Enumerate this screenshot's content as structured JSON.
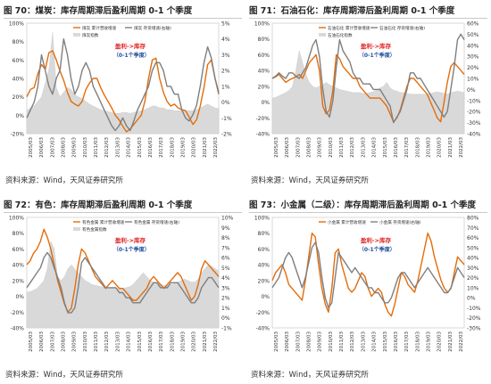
{
  "colors": {
    "orange": "#e46c0a",
    "gray": "#7f7f7f",
    "area": "#d9d9d9",
    "red": "#e02020",
    "blue": "#1f4e9e"
  },
  "panels": [
    {
      "title": "图 70：煤炭：库存周期滞后盈利周期 0-1 个季度",
      "source": "资料来源：Wind，天风证券研究所"
    },
    {
      "title": "图 71：石油石化：库存周期滞后盈利周期 0-1 个季度",
      "source": "资料来源：Wind，天风证券研究所"
    },
    {
      "title": "图 72：有色：库存周期滞后盈利周期 0-1 个季度",
      "source": "资料来源：Wind，天风证券研究所"
    },
    {
      "title": "图 73：小金属（二级）：库存周期滞后盈利周期 0-1 个季度",
      "source": "资料来源：Wind，天风证券研究所"
    }
  ],
  "chart_data": [
    {
      "type": "line",
      "x_ticks": [
        "2005/03",
        "2006/03",
        "2007/03",
        "2008/03",
        "2009/03",
        "2010/03",
        "2011/03",
        "2012/03",
        "2013/03",
        "2014/03",
        "2015/03",
        "2016/03",
        "2017/03",
        "2018/03",
        "2019/03",
        "2020/03",
        "2021/03",
        "2022/03"
      ],
      "left_ticks": [
        "100%",
        "80%",
        "60%",
        "40%",
        "20%",
        "0%",
        "-20%"
      ],
      "right_ticks": [
        "5%",
        "4%",
        "3%",
        "2%",
        "1%",
        "0%",
        "-1%",
        "-2%"
      ],
      "ylim_left": [
        -20,
        100
      ],
      "ylim_right": [
        -2,
        5
      ],
      "legend": [
        "煤炭 累计营收增速",
        "煤炭 存货增速(右轴)",
        "煤炭指数"
      ],
      "annotation": {
        "line1": "盈利->库存",
        "line2": "（0-1个季度）"
      },
      "series": [
        {
          "name": "煤炭 累计营收增速",
          "axis": "left",
          "values": [
            20,
            28,
            30,
            45,
            55,
            50,
            68,
            70,
            60,
            48,
            38,
            25,
            15,
            12,
            10,
            15,
            28,
            35,
            40,
            40,
            30,
            22,
            15,
            8,
            0,
            -5,
            -12,
            -18,
            -15,
            -10,
            -5,
            0,
            15,
            40,
            60,
            62,
            40,
            25,
            15,
            10,
            12,
            8,
            6,
            5,
            -2,
            -10,
            -5,
            10,
            30,
            55,
            60,
            40,
            25
          ]
        },
        {
          "name": "煤炭 存货增速(右轴)",
          "axis": "right",
          "values": [
            -1,
            -0.5,
            0,
            1,
            3,
            2,
            1,
            0.5,
            1.5,
            2,
            4,
            3,
            1.5,
            0.5,
            1,
            2,
            2.5,
            2,
            1,
            0.5,
            0,
            -0.5,
            -1,
            -1.5,
            -1.8,
            -1.5,
            -1,
            -1.5,
            -1.8,
            -1.2,
            -0.5,
            0,
            0.5,
            1,
            2,
            2.5,
            2.5,
            2,
            1,
            1,
            0.5,
            0.5,
            -0.5,
            -1,
            -1.2,
            -0.8,
            -0.2,
            1,
            2.5,
            3.5,
            2.8,
            1.5,
            0.5
          ]
        },
        {
          "name": "煤炭指数",
          "axis": "left",
          "kind": "area",
          "values": [
            5,
            8,
            10,
            15,
            20,
            35,
            50,
            90,
            30,
            20,
            25,
            30,
            28,
            22,
            20,
            18,
            15,
            12,
            10,
            8,
            6,
            5,
            4,
            3,
            2,
            2,
            3,
            3,
            2,
            3,
            4,
            5,
            6,
            8,
            10,
            10,
            8,
            8,
            6,
            6,
            5,
            5,
            5,
            5,
            5,
            5,
            6,
            8,
            10,
            12,
            10,
            8,
            7
          ]
        }
      ]
    },
    {
      "type": "line",
      "x_ticks": [
        "2005/03",
        "2006/03",
        "2007/03",
        "2008/03",
        "2009/03",
        "2010/03",
        "2011/03",
        "2012/03",
        "2013/03",
        "2014/03",
        "2015/03",
        "2016/03",
        "2017/03",
        "2018/03",
        "2019/03",
        "2020/03",
        "2021/03",
        "2022/03"
      ],
      "left_ticks": [
        "100%",
        "80%",
        "60%",
        "40%",
        "20%",
        "0%",
        "-20%",
        "-40%"
      ],
      "right_ticks": [
        "60%",
        "50%",
        "40%",
        "30%",
        "20%",
        "10%",
        "0%",
        "-10%",
        "-20%",
        "-30%",
        "-40%"
      ],
      "ylim_left": [
        -40,
        100
      ],
      "ylim_right": [
        -40,
        60
      ],
      "legend": [
        "石油石化 累计营收增速",
        "石油石化 存货增速(右轴)",
        "石油石化指数"
      ],
      "annotation": {
        "line1": "盈利->库存",
        "line2": "（0-1个季度）"
      },
      "series": [
        {
          "name": "石油石化 累计营收增速",
          "axis": "left",
          "values": [
            30,
            32,
            35,
            30,
            25,
            28,
            30,
            32,
            35,
            30,
            40,
            50,
            55,
            60,
            40,
            -5,
            -15,
            -10,
            15,
            60,
            55,
            45,
            40,
            35,
            30,
            30,
            20,
            15,
            10,
            5,
            5,
            5,
            5,
            0,
            -5,
            -15,
            -25,
            -20,
            -10,
            5,
            20,
            30,
            30,
            25,
            20,
            15,
            10,
            0,
            -10,
            -20,
            -25,
            0,
            25,
            45,
            50,
            45,
            40,
            35
          ]
        },
        {
          "name": "石油石化 存货增速(右轴)",
          "axis": "right",
          "values": [
            10,
            12,
            15,
            12,
            10,
            15,
            15,
            12,
            10,
            15,
            20,
            30,
            40,
            45,
            30,
            0,
            -20,
            -25,
            -10,
            20,
            45,
            35,
            30,
            25,
            15,
            10,
            10,
            5,
            5,
            5,
            0,
            0,
            0,
            -5,
            -10,
            -15,
            -30,
            -25,
            -20,
            -10,
            0,
            15,
            15,
            10,
            10,
            5,
            0,
            -5,
            -10,
            -15,
            -20,
            -25,
            -20,
            0,
            20,
            45,
            50,
            45
          ]
        },
        {
          "name": "石油石化指数",
          "axis": "left",
          "kind": "area",
          "values": [
            5,
            6,
            8,
            10,
            12,
            15,
            20,
            40,
            65,
            50,
            35,
            25,
            20,
            18,
            20,
            22,
            25,
            22,
            20,
            18,
            16,
            15,
            14,
            13,
            12,
            12,
            12,
            11,
            11,
            12,
            13,
            15,
            18,
            20,
            25,
            18,
            15,
            14,
            12,
            12,
            11,
            10,
            10,
            10,
            10,
            10,
            10,
            11,
            12,
            13,
            12,
            11,
            10,
            12,
            13,
            14,
            13,
            12
          ]
        }
      ]
    },
    {
      "type": "line",
      "x_ticks": [
        "2005/03",
        "2006/03",
        "2007/03",
        "2008/03",
        "2009/03",
        "2010/03",
        "2011/03",
        "2012/03",
        "2013/03",
        "2014/03",
        "2015/03",
        "2016/03",
        "2017/03",
        "2018/03",
        "2019/03",
        "2020/03",
        "2021/03",
        "2022/03"
      ],
      "left_ticks": [
        "100%",
        "80%",
        "60%",
        "40%",
        "20%",
        "0%",
        "-20%",
        "-40%"
      ],
      "right_ticks": [
        "10%",
        "9%",
        "8%",
        "7%",
        "6%",
        "5%",
        "4%",
        "3%",
        "2%",
        "1%",
        "0%",
        "-1%"
      ],
      "ylim_left": [
        -40,
        100
      ],
      "ylim_right": [
        -1,
        10
      ],
      "legend": [
        "有色金属 累计营收增速",
        "有色金属 存货增速(右轴)",
        "有色金属指数"
      ],
      "annotation": {
        "line1": "盈利->库存",
        "line2": "（0-1个季度）"
      },
      "series": [
        {
          "name": "有色金属 累计营收增速",
          "axis": "left",
          "values": [
            40,
            45,
            55,
            60,
            70,
            85,
            75,
            60,
            40,
            20,
            5,
            -10,
            -20,
            -15,
            10,
            40,
            60,
            55,
            45,
            35,
            25,
            20,
            15,
            10,
            15,
            20,
            15,
            10,
            10,
            5,
            0,
            -5,
            -5,
            0,
            5,
            10,
            20,
            25,
            20,
            15,
            10,
            15,
            20,
            25,
            30,
            25,
            15,
            5,
            -5,
            0,
            15,
            35,
            45,
            40,
            35,
            30,
            25
          ]
        },
        {
          "name": "有色金属 存货增速(右轴)",
          "axis": "right",
          "values": [
            3,
            3.5,
            4,
            4.5,
            5,
            6,
            6.5,
            6,
            5,
            4,
            3,
            1.5,
            0.5,
            0.5,
            1,
            3,
            5.5,
            6,
            5.5,
            5,
            4.5,
            4,
            3.5,
            3,
            3,
            3,
            3,
            2.5,
            2.5,
            2,
            2,
            1.5,
            1.5,
            1.5,
            2,
            2.5,
            3,
            3.5,
            3.5,
            3,
            3,
            3,
            3.5,
            3.5,
            3.5,
            3,
            2.5,
            2,
            1.5,
            1.5,
            2,
            3,
            3.5,
            4,
            4,
            3.5,
            3
          ]
        },
        {
          "name": "有色金属指数",
          "axis": "left",
          "kind": "area",
          "values": [
            5,
            6,
            8,
            10,
            15,
            20,
            35,
            70,
            60,
            25,
            20,
            25,
            35,
            40,
            35,
            30,
            25,
            20,
            18,
            15,
            14,
            13,
            12,
            11,
            10,
            10,
            10,
            10,
            10,
            11,
            12,
            15,
            20,
            25,
            30,
            25,
            20,
            18,
            16,
            15,
            14,
            14,
            15,
            16,
            18,
            20,
            22,
            20,
            18,
            18,
            22,
            30,
            35,
            40,
            38,
            35,
            32
          ]
        }
      ]
    },
    {
      "type": "line",
      "x_ticks": [
        "2005/03",
        "2006/03",
        "2007/03",
        "2008/03",
        "2009/03",
        "2010/03",
        "2011/03",
        "2012/03",
        "2013/03",
        "2014/03",
        "2015/03",
        "2016/03",
        "2017/03",
        "2018/03",
        "2019/03",
        "2020/03",
        "2021/03",
        "2022/03"
      ],
      "left_ticks": [
        "100%",
        "80%",
        "60%",
        "40%",
        "20%",
        "0%",
        "-20%",
        "-40%"
      ],
      "right_ticks": [
        "80%",
        "70%",
        "60%",
        "50%",
        "40%",
        "30%",
        "20%",
        "10%",
        "0%",
        "-10%",
        "-20%",
        "-30%"
      ],
      "ylim_left": [
        -40,
        100
      ],
      "ylim_right": [
        -30,
        80
      ],
      "legend": [
        "小金属 累计营收增速",
        "小金属 存货增速(右轴)"
      ],
      "annotation": {
        "line1": "盈利->库存",
        "line2": "（0-1个季度）"
      },
      "series": [
        {
          "name": "小金属 累计营收增速",
          "axis": "left",
          "values": [
            20,
            30,
            35,
            40,
            30,
            15,
            10,
            5,
            0,
            -5,
            20,
            50,
            80,
            75,
            40,
            10,
            -10,
            -20,
            10,
            55,
            60,
            40,
            25,
            10,
            5,
            10,
            20,
            30,
            25,
            10,
            0,
            5,
            10,
            5,
            -10,
            -20,
            -25,
            -10,
            10,
            30,
            25,
            15,
            10,
            5,
            20,
            40,
            60,
            80,
            70,
            50,
            35,
            20,
            10,
            5,
            10,
            30,
            50,
            45,
            40
          ]
        },
        {
          "name": "小金属 存货增速(右轴)",
          "axis": "right",
          "values": [
            10,
            15,
            20,
            30,
            40,
            45,
            40,
            30,
            20,
            10,
            20,
            35,
            50,
            55,
            45,
            20,
            0,
            -10,
            -5,
            20,
            45,
            40,
            35,
            30,
            25,
            30,
            25,
            20,
            15,
            10,
            10,
            5,
            5,
            0,
            -5,
            -5,
            0,
            10,
            20,
            25,
            25,
            20,
            15,
            10,
            15,
            20,
            25,
            30,
            25,
            20,
            15,
            10,
            5,
            5,
            10,
            20,
            30,
            25,
            20
          ]
        }
      ]
    }
  ]
}
